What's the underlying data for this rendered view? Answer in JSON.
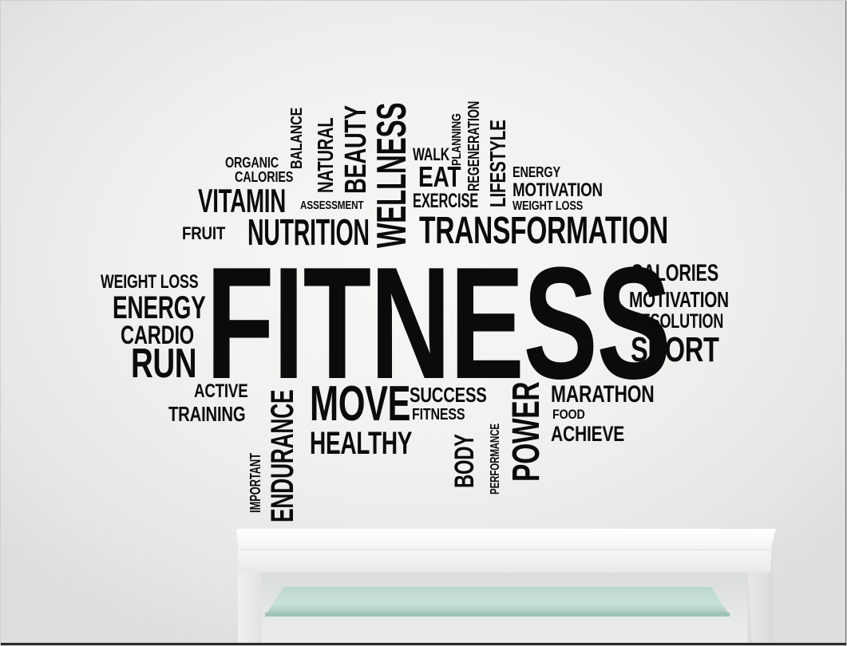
{
  "words": [
    {
      "id": "fitness-main",
      "text": "FITNESS"
    },
    {
      "id": "transformation",
      "text": "TRANSFORMATION"
    },
    {
      "id": "nutrition",
      "text": "NUTRITION"
    },
    {
      "id": "vitamin",
      "text": "VITAMIN"
    },
    {
      "id": "fruit",
      "text": "FRUIT"
    },
    {
      "id": "organic",
      "text": "ORGANIC"
    },
    {
      "id": "calories-top",
      "text": "CALORIES"
    },
    {
      "id": "assessment",
      "text": "ASSESSMENT"
    },
    {
      "id": "balance",
      "text": "BALANCE"
    },
    {
      "id": "natural",
      "text": "NATURAL"
    },
    {
      "id": "beauty",
      "text": "BEAUTY"
    },
    {
      "id": "wellness",
      "text": "WELLNESS"
    },
    {
      "id": "walk",
      "text": "WALK"
    },
    {
      "id": "eat",
      "text": "EAT"
    },
    {
      "id": "exercise",
      "text": "EXERCISE"
    },
    {
      "id": "planning",
      "text": "PLANNING"
    },
    {
      "id": "regeneration",
      "text": "REGENERATION"
    },
    {
      "id": "lifestyle",
      "text": "LIFESTYLE"
    },
    {
      "id": "energy-top",
      "text": "ENERGY"
    },
    {
      "id": "motivation-top",
      "text": "MOTIVATION"
    },
    {
      "id": "weight-loss-top",
      "text": "WEIGHT LOSS"
    },
    {
      "id": "weight-loss-left",
      "text": "WEIGHT LOSS"
    },
    {
      "id": "energy-left",
      "text": "ENERGY"
    },
    {
      "id": "cardio",
      "text": "CARDIO"
    },
    {
      "id": "run",
      "text": "RUN"
    },
    {
      "id": "calories-right",
      "text": "CALORIES"
    },
    {
      "id": "motivation-right",
      "text": "MOTIVATION"
    },
    {
      "id": "resolution",
      "text": "RESOLUTION"
    },
    {
      "id": "sport",
      "text": "SPORT"
    },
    {
      "id": "active",
      "text": "ACTIVE"
    },
    {
      "id": "training",
      "text": "TRAINING"
    },
    {
      "id": "important",
      "text": "IMPORTANT"
    },
    {
      "id": "endurance",
      "text": "ENDURANCE"
    },
    {
      "id": "move",
      "text": "MOVE"
    },
    {
      "id": "healthy",
      "text": "HEALTHY"
    },
    {
      "id": "success",
      "text": "SUCCESS"
    },
    {
      "id": "fitness-small",
      "text": "FITNESS"
    },
    {
      "id": "body",
      "text": "BODY"
    },
    {
      "id": "performance",
      "text": "PERFORMANCE"
    },
    {
      "id": "power",
      "text": "POWER"
    },
    {
      "id": "marathon",
      "text": "MARATHON"
    },
    {
      "id": "food",
      "text": "FOOD"
    },
    {
      "id": "achieve",
      "text": "ACHIEVE"
    }
  ]
}
